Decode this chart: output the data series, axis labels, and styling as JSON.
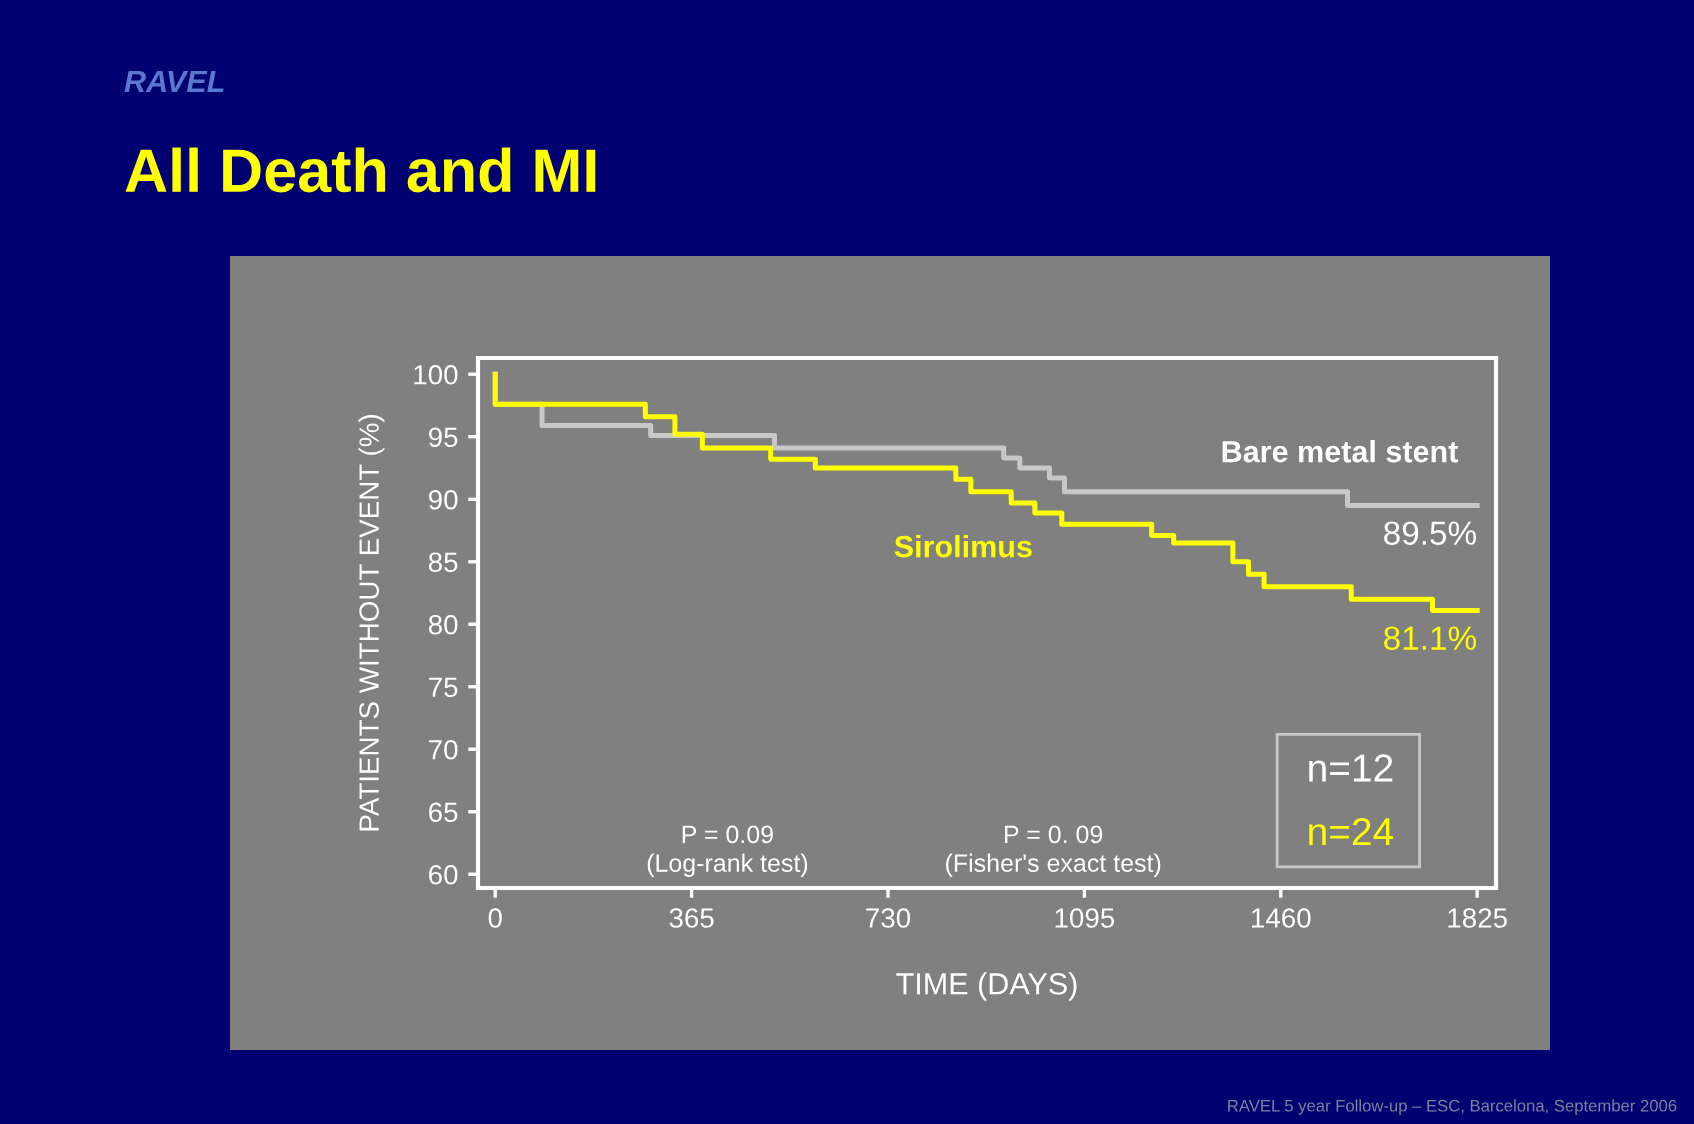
{
  "chart_data": {
    "type": "step",
    "title": "All Death and MI",
    "subtitle": "RAVEL",
    "xlabel": "TIME (DAYS)",
    "ylabel": "PATIENTS WITHOUT EVENT (%)",
    "xlim": [
      -32,
      1860
    ],
    "ylim": [
      58.9,
      101.3
    ],
    "xticks": [
      0,
      365,
      730,
      1095,
      1460,
      1825
    ],
    "yticks": [
      60,
      65,
      70,
      75,
      80,
      85,
      90,
      95,
      100
    ],
    "grid": false,
    "series": [
      {
        "name": "Bare metal stent",
        "color": "#c8c8c8",
        "x": [
          0,
          0,
          87,
          289,
          519,
          945,
          975,
          1030,
          1058,
          1584,
          1825
        ],
        "values": [
          100,
          97.6,
          95.9,
          95.1,
          94.1,
          93.3,
          92.5,
          91.7,
          90.6,
          89.5,
          89.5
        ]
      },
      {
        "name": "Sirolimus",
        "color": "#ffff00",
        "x": [
          0,
          0,
          279,
          334,
          385,
          512,
          595,
          856,
          884,
          959,
          1003,
          1053,
          1220,
          1261,
          1371,
          1400,
          1429,
          1591,
          1742,
          1825
        ],
        "values": [
          100,
          97.6,
          96.6,
          95.2,
          94.1,
          93.2,
          92.5,
          91.6,
          90.6,
          89.7,
          88.9,
          88.0,
          87.1,
          86.5,
          85.0,
          84.0,
          83.0,
          82.0,
          81.1,
          81.1
        ]
      }
    ],
    "annotations": [
      "P = 0.09\n(Log-rank test)",
      "P = 0. 09\n(Fisher's exact test)",
      "n=12",
      "n=24",
      {
        "text": "89.5%",
        "x": 1825,
        "y": 89.5
      },
      {
        "text": "81.1%",
        "x": 1825,
        "y": 81.1
      },
      "RAVEL 5 year Follow-up – ESC, Barcelona, September 2006"
    ]
  }
}
